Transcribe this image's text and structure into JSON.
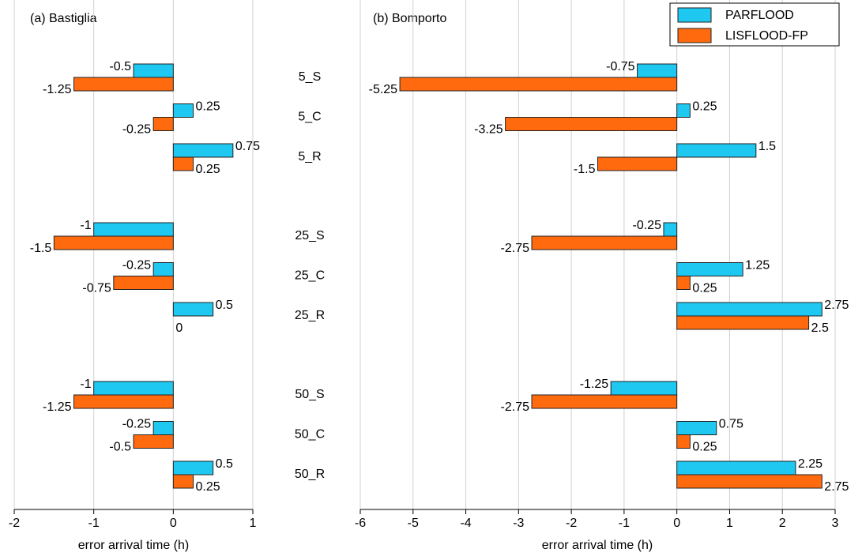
{
  "chart_data": [
    {
      "type": "bar",
      "orientation": "horizontal",
      "title": "(a) Bastiglia",
      "x_label": "error arrival time (h)",
      "categories": [
        "5_S",
        "5_C",
        "5_R",
        "25_S",
        "25_C",
        "25_R",
        "50_S",
        "50_C",
        "50_R"
      ],
      "series": [
        {
          "color": "#1ec8f0",
          "values": [
            -0.5,
            0.25,
            0.75,
            -1,
            -0.25,
            0.5,
            -1,
            -0.25,
            0.5
          ]
        },
        {
          "color": "#ff6a0e",
          "values": [
            -1.25,
            -0.25,
            0.25,
            -1.5,
            -0.75,
            0,
            -1.25,
            -0.5,
            0.25
          ]
        }
      ],
      "xlim": [
        -2,
        1
      ],
      "xticks": [
        -2,
        -1,
        0,
        1
      ],
      "grid": true
    },
    {
      "type": "bar",
      "orientation": "horizontal",
      "title": "(b) Bomporto",
      "x_label": "error arrival time (h)",
      "series": [
        {
          "name": "PARFLOOD",
          "color": "#1ec8f0",
          "values": [
            -0.75,
            0.25,
            1.5,
            -0.25,
            1.25,
            2.75,
            -1.25,
            0.75,
            2.25
          ]
        },
        {
          "name": "LISFLOOD-FP",
          "color": "#ff6a0e",
          "values": [
            -5.25,
            -3.25,
            -1.5,
            -2.75,
            0.25,
            2.5,
            -2.75,
            0.25,
            2.75
          ]
        }
      ],
      "xlim": [
        -6,
        3
      ],
      "xticks": [
        -6,
        -5,
        -4,
        -3,
        -2,
        -1,
        0,
        1,
        2,
        3
      ],
      "grid": true,
      "legend": "upper right"
    }
  ]
}
